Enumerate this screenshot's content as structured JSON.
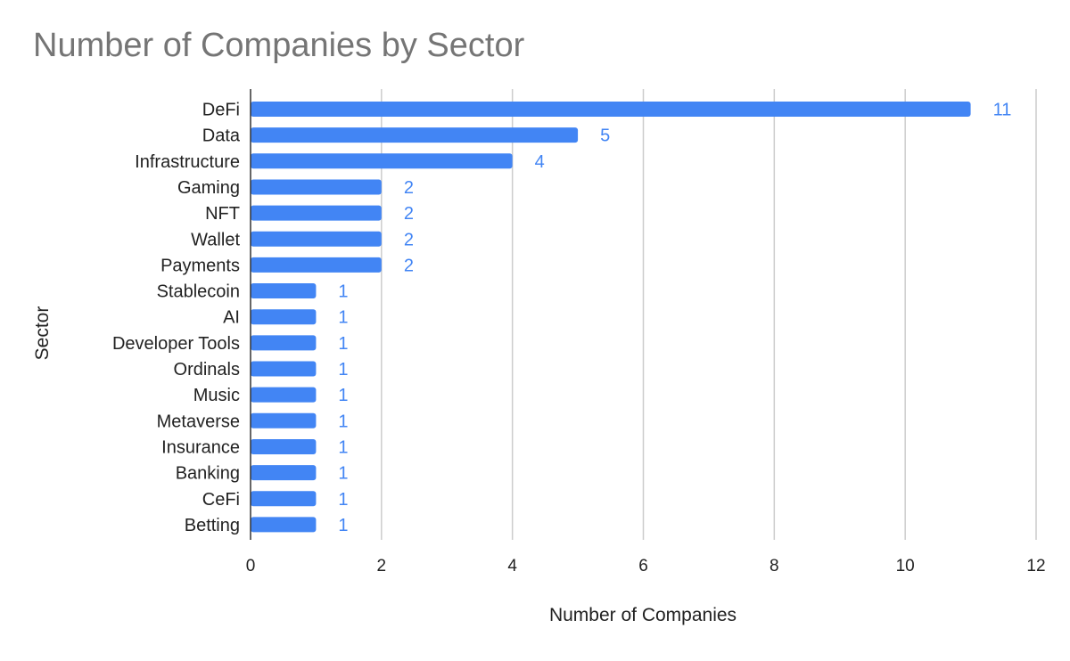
{
  "chart_data": {
    "type": "bar",
    "orientation": "horizontal",
    "title": "Number of Companies by Sector",
    "xlabel": "Number of Companies",
    "ylabel": "Sector",
    "categories": [
      "DeFi",
      "Data",
      "Infrastructure",
      "Gaming",
      "NFT",
      "Wallet",
      "Payments",
      "Stablecoin",
      "AI",
      "Developer Tools",
      "Ordinals",
      "Music",
      "Metaverse",
      "Insurance",
      "Banking",
      "CeFi",
      "Betting"
    ],
    "values": [
      11,
      5,
      4,
      2,
      2,
      2,
      2,
      1,
      1,
      1,
      1,
      1,
      1,
      1,
      1,
      1,
      1
    ],
    "xlim": [
      0,
      12
    ],
    "xticks": [
      0,
      2,
      4,
      6,
      8,
      10,
      12
    ],
    "grid": "vertical",
    "legend": "none",
    "data_labels": true,
    "colors": {
      "bar": "#4285F4",
      "label": "#4285F4",
      "grid": "#CCCCCC",
      "axis": "#333333",
      "title": "#757575"
    }
  }
}
